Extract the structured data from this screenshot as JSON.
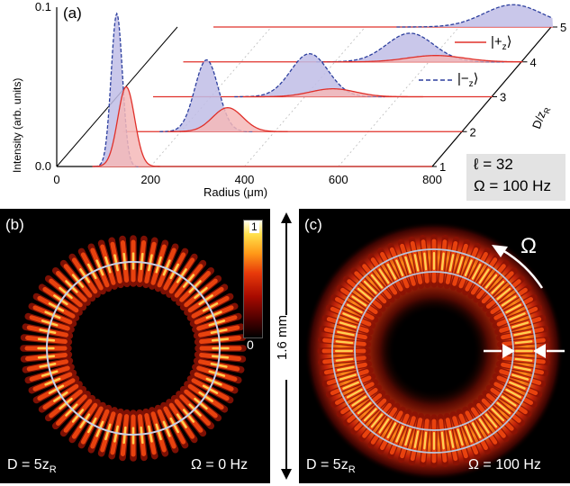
{
  "panel_a": {
    "label": "(a)",
    "ylabel": "Intensity (arb. units)",
    "xlabel": "Radius (μm)",
    "zlabel_main": "D/z",
    "zlabel_sub": "R",
    "legend": {
      "plus_main": "|+",
      "plus_sub": "z",
      "plus_end": "⟩",
      "minus_main": "|−",
      "minus_sub": "z",
      "minus_end": "⟩"
    },
    "info_ell": "ℓ = 32",
    "info_omega": "Ω = 100 Hz"
  },
  "chart_data": {
    "type": "line",
    "title": "",
    "xlabel": "Radius (μm)",
    "ylabel": "Intensity (arb. units)",
    "zlabel": "D/zR",
    "xlim": [
      0,
      800
    ],
    "ylim": [
      0.0,
      0.1
    ],
    "x_ticks": [
      "0",
      "200",
      "400",
      "600",
      "800"
    ],
    "y_ticks": [
      "0.0",
      "0.1"
    ],
    "z_ticks": [
      "1",
      "2",
      "3",
      "4",
      "5"
    ],
    "grid": true,
    "legend_position": "right",
    "series": [
      {
        "name": "|+z⟩",
        "style": "solid red, red fill",
        "curves": [
          {
            "D": 1,
            "peak_radius": 148,
            "peak_intensity": 0.05,
            "width": 18
          },
          {
            "D": 2,
            "peak_radius": 300,
            "peak_intensity": 0.015,
            "width": 32
          },
          {
            "D": 3,
            "peak_radius": 460,
            "peak_intensity": 0.005,
            "width": 48
          },
          {
            "D": 4,
            "peak_radius": 615,
            "peak_intensity": 0.004,
            "width": 60
          },
          {
            "D": 5,
            "peak_radius": 770,
            "peak_intensity": 0.0,
            "width": 70
          }
        ]
      },
      {
        "name": "|−z⟩",
        "style": "dashed blue, lavender fill",
        "curves": [
          {
            "D": 1,
            "peak_radius": 128,
            "peak_intensity": 0.096,
            "width": 12
          },
          {
            "D": 2,
            "peak_radius": 255,
            "peak_intensity": 0.045,
            "width": 25
          },
          {
            "D": 3,
            "peak_radius": 410,
            "peak_intensity": 0.027,
            "width": 40
          },
          {
            "D": 4,
            "peak_radius": 560,
            "peak_intensity": 0.018,
            "width": 50
          },
          {
            "D": 5,
            "peak_radius": 715,
            "peak_intensity": 0.014,
            "width": 62
          }
        ]
      }
    ]
  },
  "panel_b": {
    "label": "(b)",
    "d_main": "D = 5z",
    "d_sub": "R",
    "omega": "Ω = 0 Hz"
  },
  "panel_c": {
    "label": "(c)",
    "d_main": "D = 5z",
    "d_sub": "R",
    "omega": "Ω = 100 Hz",
    "arrow_label": "Ω"
  },
  "colorbar": {
    "max": "1",
    "min": "0"
  },
  "scale_bar": "1.6 mm",
  "colors": {
    "red": "#e0302a",
    "blue": "#2c3f9e",
    "fill_red": "#f5b8b8",
    "fill_blue": "#bfbde6"
  }
}
